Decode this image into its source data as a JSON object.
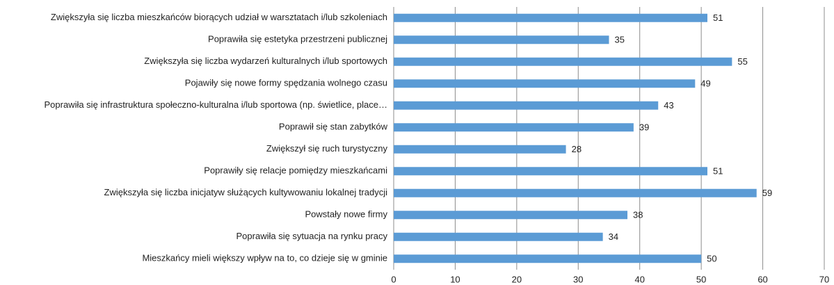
{
  "chart_data": {
    "type": "barh",
    "categories": [
      "Zwiększyła się liczba mieszkańców biorących udział w warsztatach i/lub szkoleniach",
      "Poprawiła się estetyka przestrzeni publicznej",
      "Zwiększyła się liczba wydarzeń kulturalnych i/lub sportowych",
      "Pojawiły się nowe formy spędzania wolnego czasu",
      "Poprawiła się infrastruktura społeczno-kulturalna i/lub sportowa (np. świetlice, place…",
      "Poprawił się stan zabytków",
      "Zwiększył się ruch turystyczny",
      "Poprawiły się relacje pomiędzy mieszkańcami",
      "Zwiększyła się liczba inicjatyw służących kultywowaniu lokalnej tradycji",
      "Powstały nowe firmy",
      "Poprawiła się sytuacja na rynku pracy",
      "Mieszkańcy mieli większy wpływ na to, co dzieje się w gminie"
    ],
    "values": [
      51,
      35,
      55,
      49,
      43,
      39,
      28,
      51,
      59,
      38,
      34,
      50
    ],
    "color": "#5b9bd5",
    "xlim": [
      0,
      70
    ],
    "xticks": [
      0,
      10,
      20,
      30,
      40,
      50,
      60,
      70
    ],
    "grid": true
  }
}
